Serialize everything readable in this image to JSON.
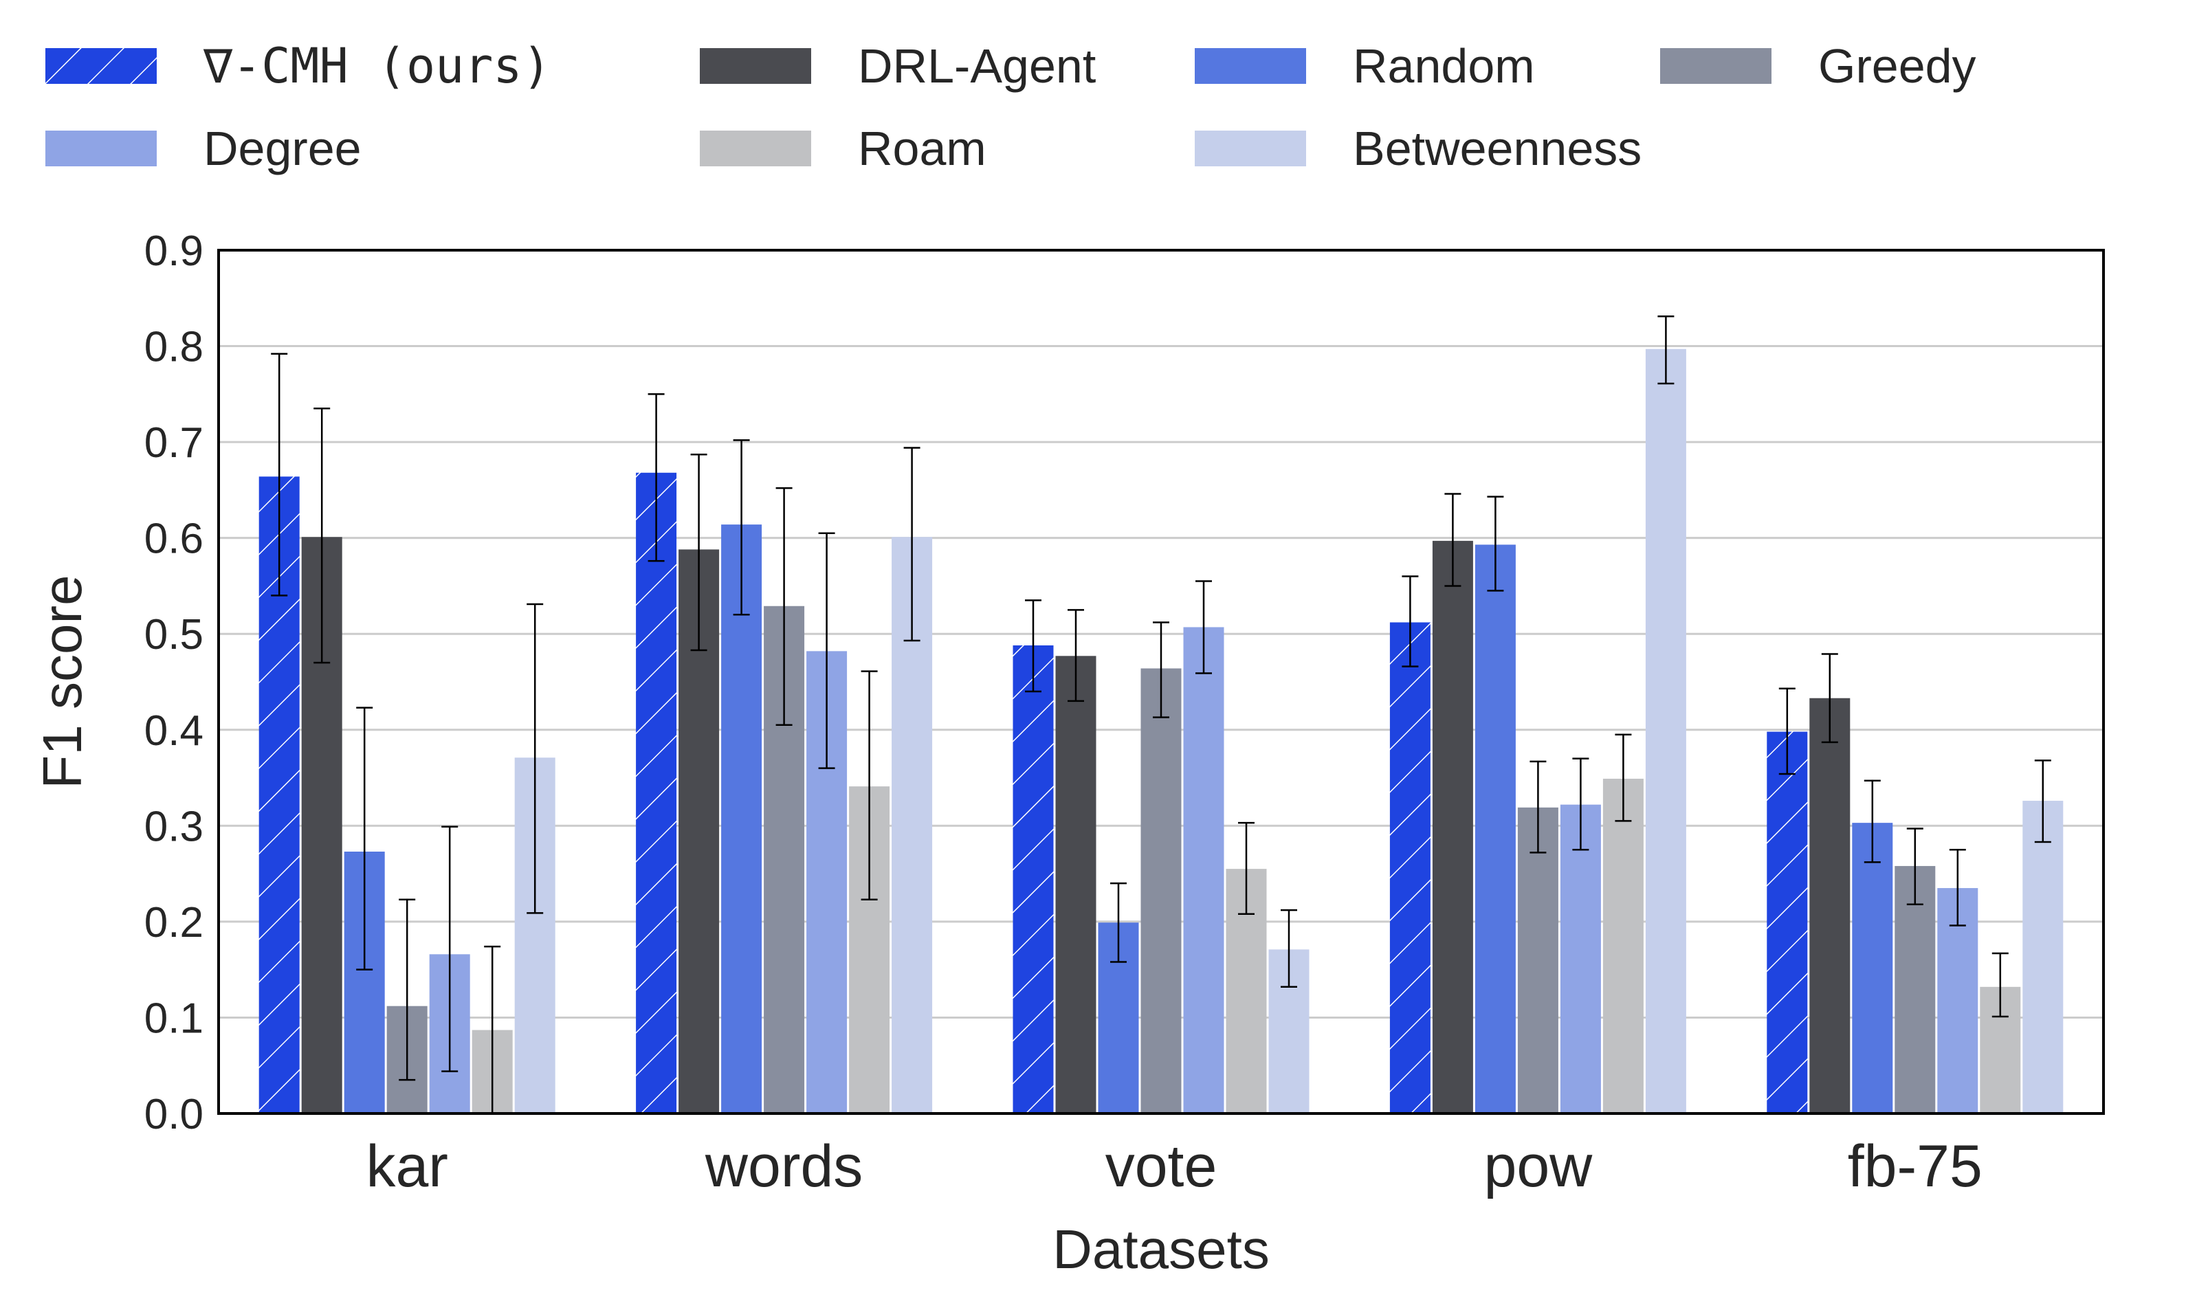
{
  "chart_data": {
    "type": "bar",
    "xlabel": "Datasets",
    "ylabel": "F1 score",
    "ylim": [
      0,
      0.9
    ],
    "yticks": [
      "0.0",
      "0.1",
      "0.2",
      "0.3",
      "0.4",
      "0.5",
      "0.6",
      "0.7",
      "0.8",
      "0.9"
    ],
    "grid": "horizontal",
    "legend_position": "top",
    "categories": [
      "kar",
      "words",
      "vote",
      "pow",
      "fb-75"
    ],
    "series": [
      {
        "name": "∇-CMH (ours)",
        "color": "#1f44e0",
        "hatch": true,
        "values": [
          0.664,
          0.668,
          0.488,
          0.512,
          0.398
        ],
        "errors": [
          [
            0.54,
            0.792
          ],
          [
            0.576,
            0.75
          ],
          [
            0.44,
            0.535
          ],
          [
            0.466,
            0.56
          ],
          [
            0.354,
            0.443
          ]
        ]
      },
      {
        "name": "DRL-Agent",
        "color": "#4a4b50",
        "hatch": false,
        "values": [
          0.601,
          0.588,
          0.477,
          0.597,
          0.433
        ],
        "errors": [
          [
            0.47,
            0.735
          ],
          [
            0.483,
            0.687
          ],
          [
            0.43,
            0.525
          ],
          [
            0.55,
            0.646
          ],
          [
            0.387,
            0.479
          ]
        ]
      },
      {
        "name": "Random",
        "color": "#5577e0",
        "hatch": false,
        "values": [
          0.273,
          0.614,
          0.199,
          0.593,
          0.303
        ],
        "errors": [
          [
            0.15,
            0.423
          ],
          [
            0.52,
            0.702
          ],
          [
            0.158,
            0.24
          ],
          [
            0.545,
            0.643
          ],
          [
            0.262,
            0.347
          ]
        ]
      },
      {
        "name": "Greedy",
        "color": "#888e9e",
        "hatch": false,
        "values": [
          0.112,
          0.529,
          0.464,
          0.319,
          0.258
        ],
        "errors": [
          [
            0.035,
            0.223
          ],
          [
            0.405,
            0.652
          ],
          [
            0.413,
            0.512
          ],
          [
            0.272,
            0.367
          ],
          [
            0.218,
            0.297
          ]
        ]
      },
      {
        "name": "Degree",
        "color": "#8fa4e5",
        "hatch": false,
        "values": [
          0.166,
          0.482,
          0.507,
          0.322,
          0.235
        ],
        "errors": [
          [
            0.044,
            0.299
          ],
          [
            0.36,
            0.605
          ],
          [
            0.459,
            0.555
          ],
          [
            0.275,
            0.37
          ],
          [
            0.196,
            0.275
          ]
        ]
      },
      {
        "name": "Roam",
        "color": "#c0c1c3",
        "hatch": false,
        "values": [
          0.087,
          0.341,
          0.255,
          0.349,
          0.132
        ],
        "errors": [
          [
            0.0,
            0.174
          ],
          [
            0.223,
            0.461
          ],
          [
            0.208,
            0.303
          ],
          [
            0.305,
            0.395
          ],
          [
            0.101,
            0.167
          ]
        ]
      },
      {
        "name": "Betweenness",
        "color": "#c5cfeb",
        "hatch": false,
        "values": [
          0.371,
          0.601,
          0.171,
          0.797,
          0.326
        ],
        "errors": [
          [
            0.209,
            0.531
          ],
          [
            0.493,
            0.694
          ],
          [
            0.132,
            0.212
          ],
          [
            0.761,
            0.831
          ],
          [
            0.283,
            0.368
          ]
        ]
      }
    ]
  }
}
